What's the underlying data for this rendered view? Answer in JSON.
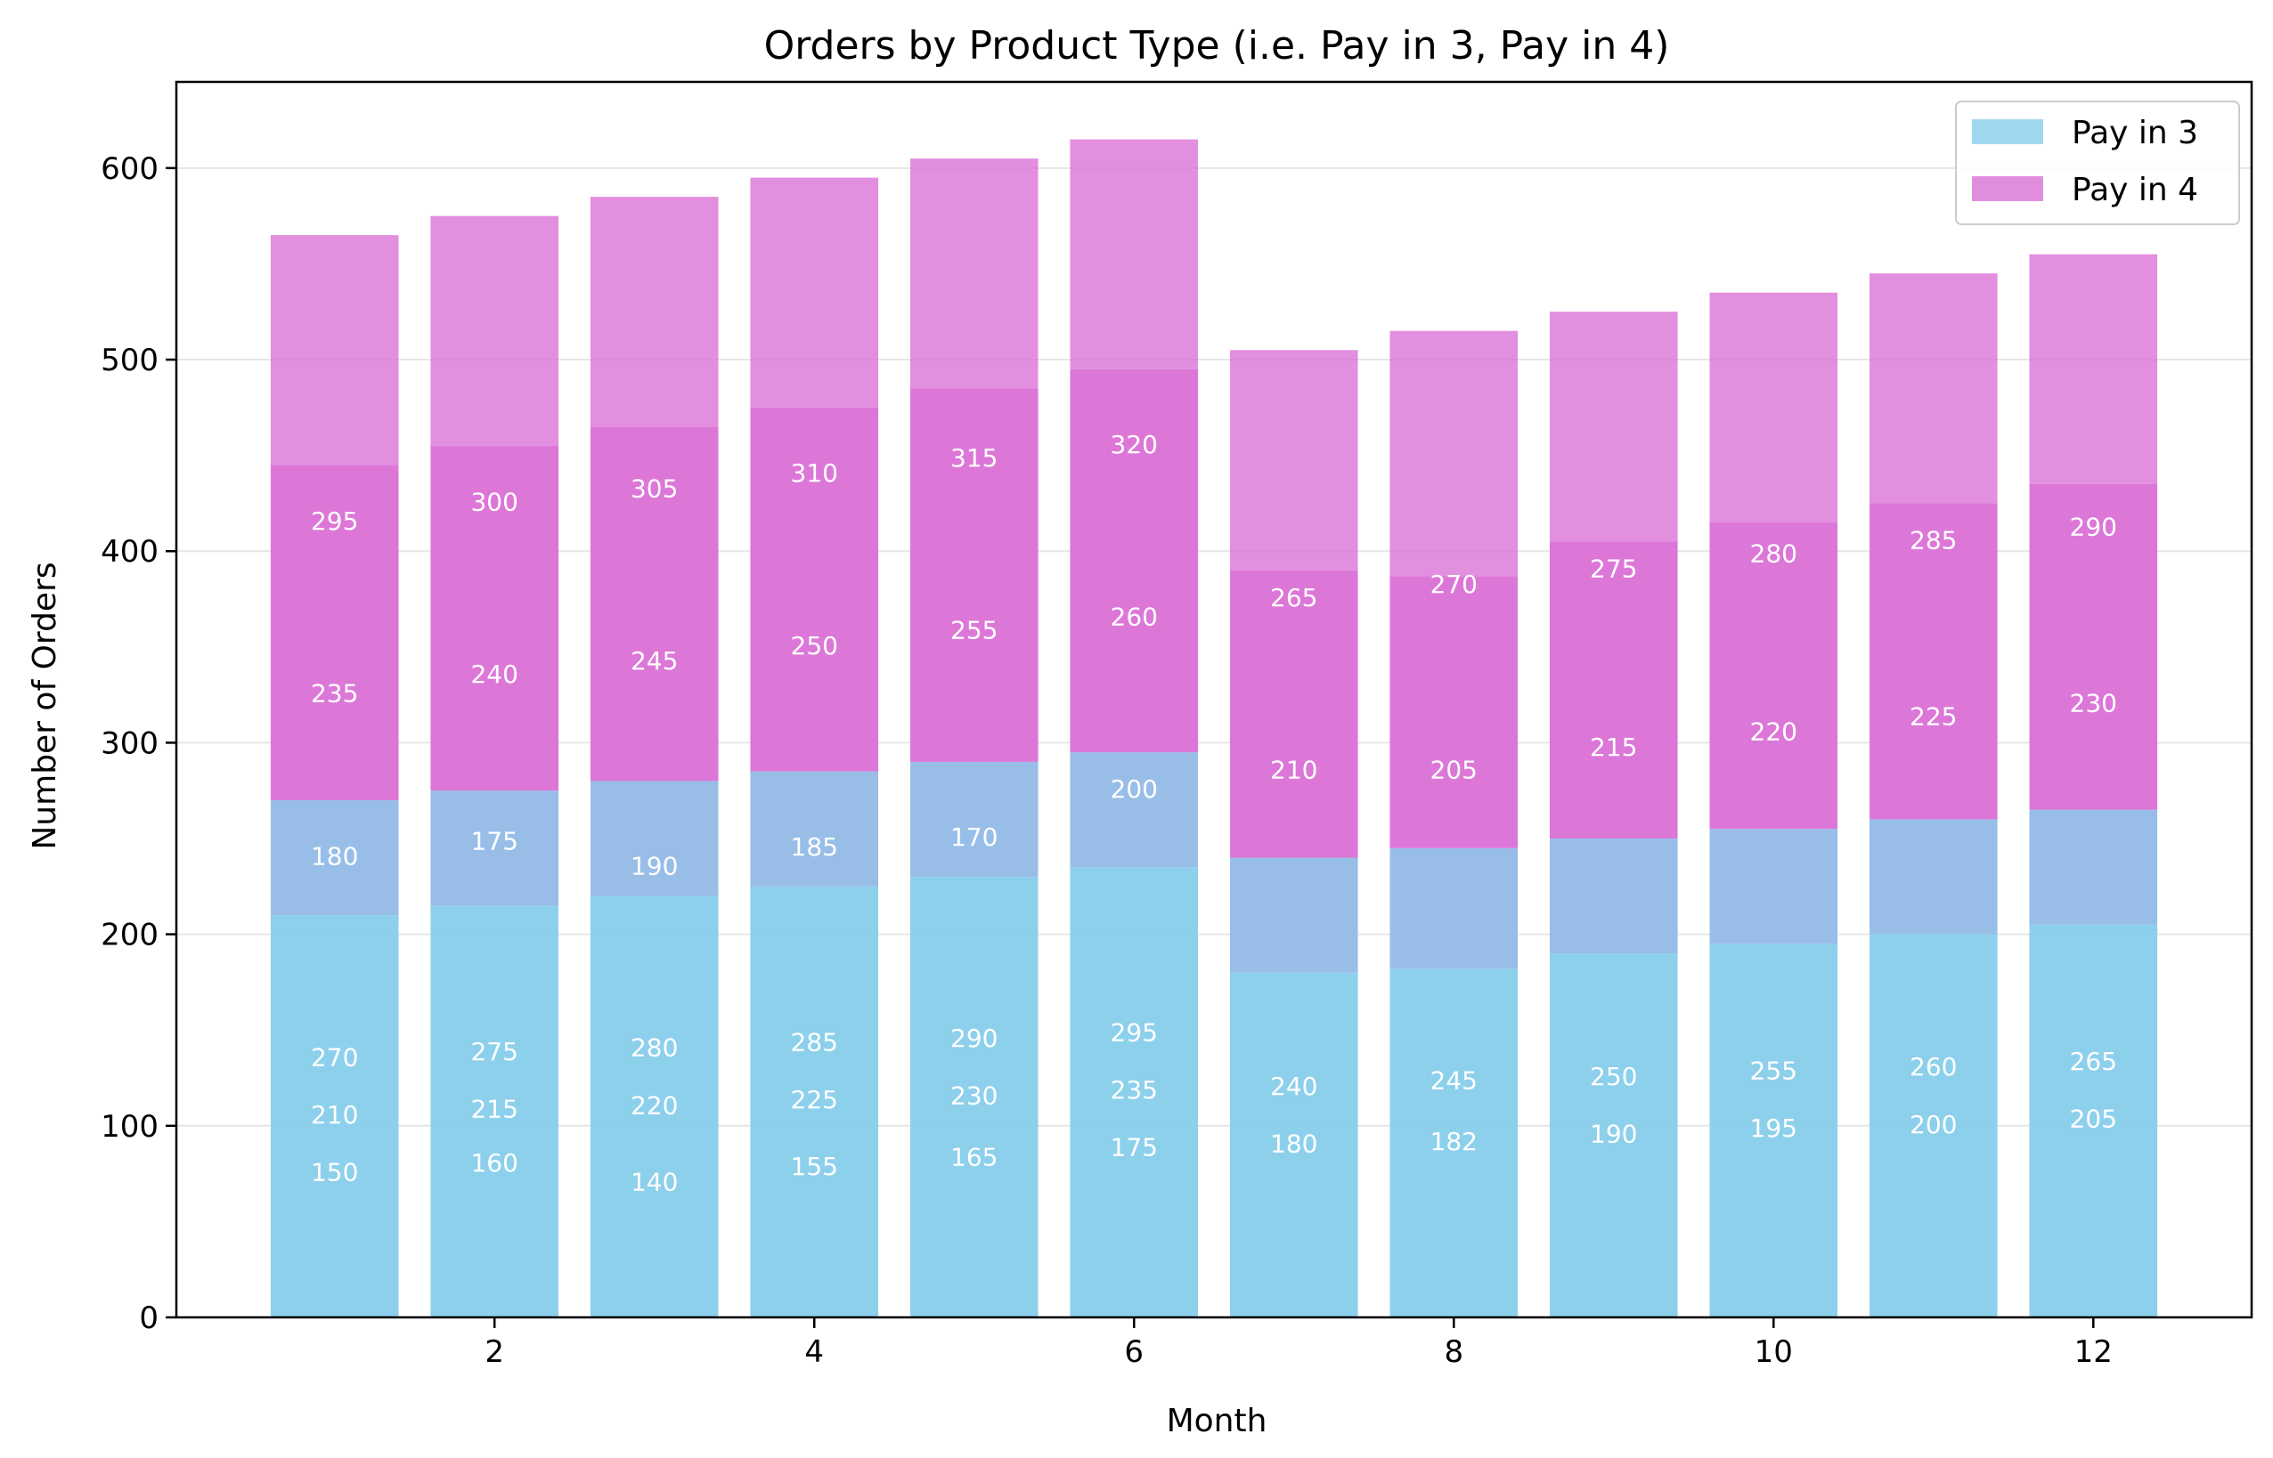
{
  "chart_data": {
    "type": "bar",
    "stacked": true,
    "title": "Orders by Product Type (i.e. Pay in 3, Pay in 4)",
    "xlabel": "Month",
    "ylabel": "Number of Orders",
    "x": [
      1,
      2,
      3,
      4,
      5,
      6,
      7,
      8,
      9,
      10,
      11,
      12
    ],
    "xticks": [
      2,
      4,
      6,
      8,
      10,
      12
    ],
    "xlim": [
      0.01,
      12.99
    ],
    "yticks": [
      0,
      100,
      200,
      300,
      400,
      500,
      600
    ],
    "ylim": [
      0,
      645
    ],
    "grid": "y",
    "legend_position": "top-right",
    "legend": [
      {
        "label": "Pay in 3",
        "color": "#87ceeb"
      },
      {
        "label": "Pay in 4",
        "color": "#da70d6"
      }
    ],
    "overlap_color": "#98bee8",
    "series": [
      {
        "name": "Pay in 3",
        "color": "#87ceeb",
        "layers": [
          [
            150,
            160,
            140,
            155,
            165,
            175,
            180,
            182,
            190,
            195,
            200,
            205
          ],
          [
            210,
            215,
            220,
            225,
            230,
            235,
            240,
            245,
            250,
            255,
            260,
            265
          ],
          [
            270,
            275,
            280,
            285,
            290,
            295,
            240,
            245,
            250,
            255,
            260,
            265
          ]
        ]
      },
      {
        "name": "Pay in 4",
        "color": "#da70d6",
        "layers": [
          [
            180,
            175,
            190,
            185,
            170,
            200,
            210,
            205,
            215,
            220,
            225,
            230
          ],
          [
            235,
            240,
            245,
            250,
            255,
            260,
            265,
            270,
            275,
            280,
            285,
            290
          ],
          [
            295,
            300,
            305,
            310,
            315,
            320,
            265,
            270,
            275,
            280,
            285,
            290
          ]
        ]
      }
    ],
    "bar_labels": [
      [
        "150",
        "210",
        "270",
        "180",
        "235",
        "295"
      ],
      [
        "160",
        "215",
        "275",
        "175",
        "240",
        "300"
      ],
      [
        "140",
        "220",
        "280",
        "190",
        "245",
        "305"
      ],
      [
        "155",
        "225",
        "285",
        "185",
        "250",
        "310"
      ],
      [
        "165",
        "230",
        "290",
        "170",
        "255",
        "315"
      ],
      [
        "175",
        "235",
        "295",
        "200",
        "260",
        "320"
      ],
      [
        "180",
        "240",
        "210",
        "265"
      ],
      [
        "182",
        "245",
        "205",
        "270"
      ],
      [
        "190",
        "250",
        "215",
        "275"
      ],
      [
        "195",
        "255",
        "220",
        "280"
      ],
      [
        "200",
        "260",
        "225",
        "285"
      ],
      [
        "205",
        "265",
        "230",
        "290"
      ]
    ],
    "bar_label_y": [
      [
        75,
        105,
        135,
        240,
        325,
        415
      ],
      [
        80,
        108,
        138,
        248,
        335,
        425
      ],
      [
        70,
        110,
        140,
        235,
        342,
        432
      ],
      [
        78,
        113,
        143,
        245,
        350,
        440
      ],
      [
        83,
        115,
        145,
        250,
        358,
        448
      ],
      [
        88,
        118,
        148,
        275,
        365,
        455
      ],
      [
        90,
        120,
        285,
        375
      ],
      [
        91,
        123,
        285,
        382
      ],
      [
        95,
        125,
        297,
        390
      ],
      [
        98,
        128,
        305,
        398
      ],
      [
        100,
        130,
        313,
        405
      ],
      [
        103,
        133,
        320,
        412
      ]
    ]
  }
}
